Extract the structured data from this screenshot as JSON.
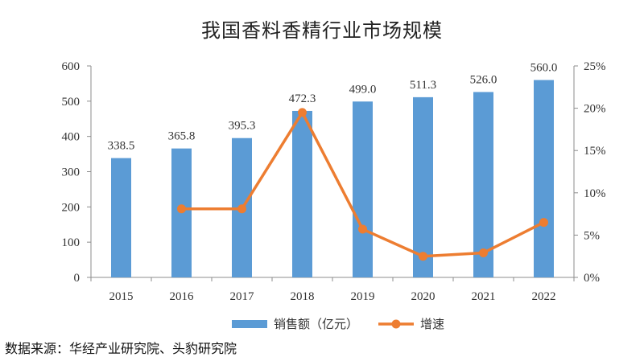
{
  "chart_data": {
    "type": "bar+line",
    "title": "我国香料香精行业市场规模",
    "categories": [
      "2015",
      "2016",
      "2017",
      "2018",
      "2019",
      "2020",
      "2021",
      "2022"
    ],
    "series": [
      {
        "name": "销售额（亿元）",
        "type": "bar",
        "axis": "left",
        "color": "#5b9bd5",
        "values": [
          338.5,
          365.8,
          395.3,
          472.3,
          499.0,
          511.3,
          526.0,
          560.0
        ],
        "labels": [
          "338.5",
          "365.8",
          "395.3",
          "472.3",
          "499.0",
          "511.3",
          "526.0",
          "560.0"
        ]
      },
      {
        "name": "增速",
        "type": "line",
        "axis": "right",
        "color": "#ed7d31",
        "values": [
          null,
          8.1,
          8.1,
          19.5,
          5.7,
          2.5,
          2.9,
          6.5
        ]
      }
    ],
    "ylim_left": [
      0,
      600
    ],
    "yticks_left": [
      "0",
      "100",
      "200",
      "300",
      "400",
      "500",
      "600"
    ],
    "ylim_right": [
      0,
      25
    ],
    "yticks_right": [
      "0%",
      "5%",
      "10%",
      "15%",
      "20%",
      "25%"
    ],
    "grid": false,
    "legend": "bottom"
  },
  "source_note": "数据来源：华经产业研究院、头豹研究院"
}
